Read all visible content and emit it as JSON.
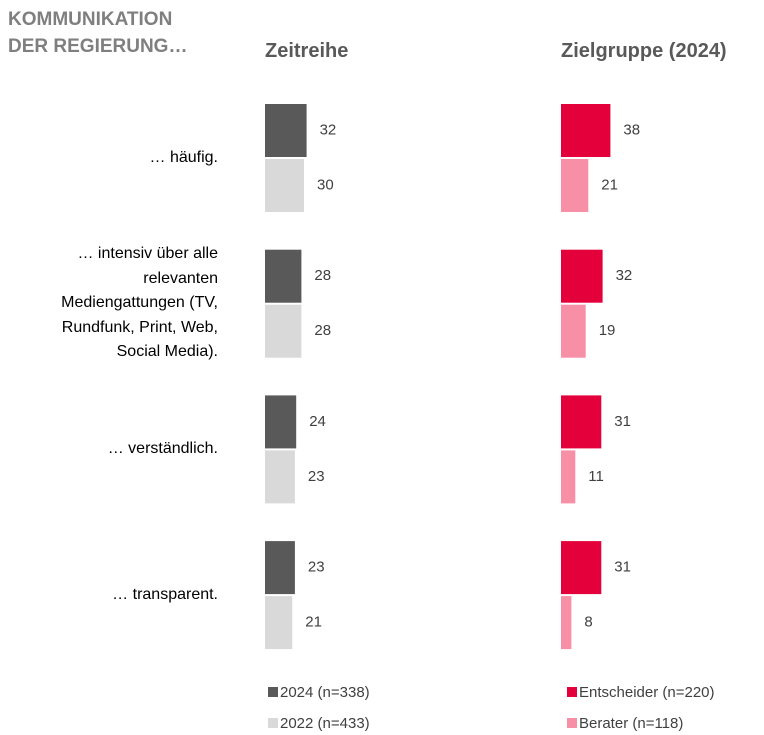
{
  "title": "KOMMUNIKATION\nDER REGIERUNG…",
  "chart_data": [
    {
      "type": "bar",
      "orientation": "horizontal",
      "title": "Zeitreihe",
      "categories": [
        "… häufig.",
        "… intensiv über alle relevanten Mediengattungen (TV, Rundfunk, Print, Web, Social Media).",
        "… verständlich.",
        "… transparent."
      ],
      "series": [
        {
          "name": "2024 (n=338)",
          "color": "#595959",
          "values": [
            32,
            28,
            24,
            23
          ]
        },
        {
          "name": "2022 (n=433)",
          "color": "#d9d9d9",
          "values": [
            30,
            28,
            23,
            21
          ]
        }
      ]
    },
    {
      "type": "bar",
      "orientation": "horizontal",
      "title": "Zielgruppe (2024)",
      "series": [
        {
          "name": "Entscheider (n=220)",
          "color": "#e4003a",
          "values": [
            38,
            32,
            31,
            31
          ]
        },
        {
          "name": "Berater (n=118)",
          "color": "#f78fa7",
          "values": [
            21,
            19,
            11,
            8
          ]
        }
      ]
    }
  ]
}
